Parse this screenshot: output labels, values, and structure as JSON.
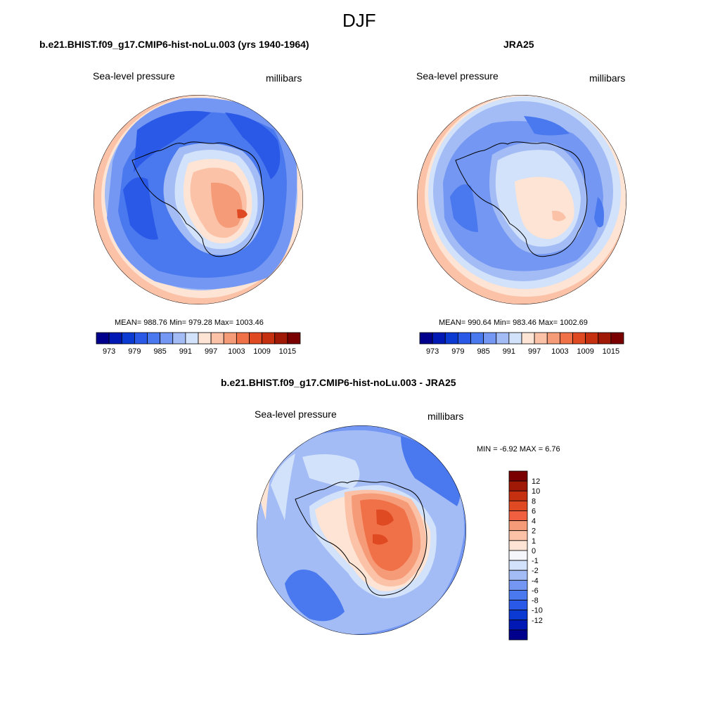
{
  "figure": {
    "title": "DJF"
  },
  "panels": [
    {
      "id": "model",
      "title": "b.e21.BHIST.f09_g17.CMIP6-hist-noLu.003 (yrs 1940-1964)",
      "left_label": "Sea-level pressure",
      "right_label": "millibars",
      "stats": "MEAN= 988.76  Min= 979.28  Max= 1003.46"
    },
    {
      "id": "obs",
      "title": "JRA25",
      "left_label": "Sea-level pressure",
      "right_label": "millibars",
      "stats": "MEAN= 990.64  Min= 983.46  Max= 1002.69"
    },
    {
      "id": "diff",
      "title": "b.e21.BHIST.f09_g17.CMIP6-hist-noLu.003 - JRA25",
      "left_label": "Sea-level pressure",
      "right_label": "millibars",
      "stats": "MIN =  -6.92 MAX =   6.76"
    }
  ],
  "colorbar_horizontal": {
    "colors": [
      "#00008c",
      "#0019b4",
      "#0a3ad2",
      "#2a59e8",
      "#4a78ee",
      "#7397f2",
      "#a3bcf5",
      "#d2e2fa",
      "#fde4d4",
      "#fbc2a8",
      "#f69b78",
      "#f07048",
      "#e04a22",
      "#c43010",
      "#a01806",
      "#7a0000"
    ],
    "tick_labels": [
      "973",
      "979",
      "985",
      "991",
      "997",
      "1003",
      "1009",
      "1015"
    ]
  },
  "colorbar_vertical": {
    "colors": [
      "#7a0000",
      "#a01806",
      "#c43010",
      "#e04a22",
      "#f06040",
      "#f69b78",
      "#fbc2a8",
      "#fde4d4",
      "#f4f6fc",
      "#d2e2fa",
      "#a3bcf5",
      "#7397f2",
      "#4a78ee",
      "#2a59e8",
      "#0a3ad2",
      "#0019b4",
      "#00008c"
    ],
    "tick_labels": [
      "12",
      "10",
      "8",
      "6",
      "4",
      "2",
      "1",
      "0",
      "-1",
      "-2",
      "-4",
      "-6",
      "-8",
      "-10",
      "-12"
    ]
  }
}
